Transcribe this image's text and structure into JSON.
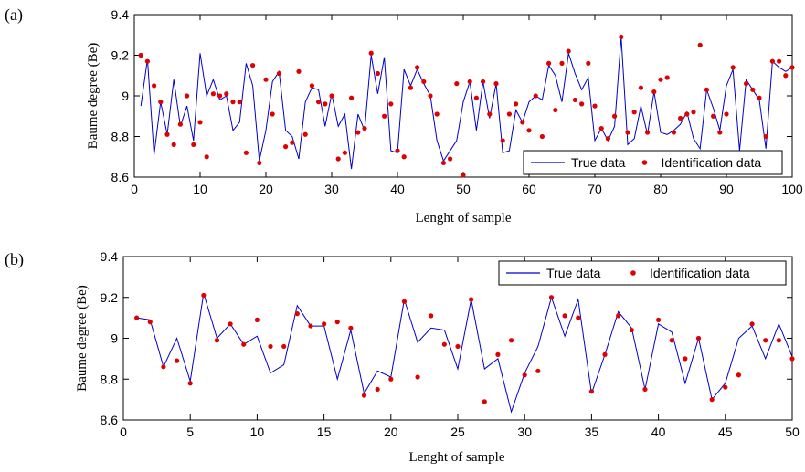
{
  "chart_data": [
    {
      "type": "line+scatter",
      "panel_label": "(a)",
      "xlabel": "Lenght of sample",
      "ylabel": "Baume degree (Be)",
      "xlim": [
        0,
        100
      ],
      "ylim": [
        8.6,
        9.4
      ],
      "xticks": [
        0,
        10,
        20,
        30,
        40,
        50,
        60,
        70,
        80,
        90,
        100
      ],
      "yticks": [
        8.6,
        8.8,
        9,
        9.2,
        9.4
      ],
      "ytick_labels": [
        "8.6",
        "8.8",
        "9",
        "9.2",
        "9.4"
      ],
      "legend": {
        "position": "bottom-right",
        "entries": [
          "True data",
          "Identification data"
        ]
      },
      "colors": {
        "true": "#0000cc",
        "ident": "#e00000"
      },
      "x": [
        1,
        2,
        3,
        4,
        5,
        6,
        7,
        8,
        9,
        10,
        11,
        12,
        13,
        14,
        15,
        16,
        17,
        18,
        19,
        20,
        21,
        22,
        23,
        24,
        25,
        26,
        27,
        28,
        29,
        30,
        31,
        32,
        33,
        34,
        35,
        36,
        37,
        38,
        39,
        40,
        41,
        42,
        43,
        44,
        45,
        46,
        47,
        48,
        49,
        50,
        51,
        52,
        53,
        54,
        55,
        56,
        57,
        58,
        59,
        60,
        61,
        62,
        63,
        64,
        65,
        66,
        67,
        68,
        69,
        70,
        71,
        72,
        73,
        74,
        75,
        76,
        77,
        78,
        79,
        80,
        81,
        82,
        83,
        84,
        85,
        86,
        87,
        88,
        89,
        90,
        91,
        92,
        93,
        94,
        95,
        96,
        97,
        98,
        99,
        100
      ],
      "series": [
        {
          "name": "True data",
          "style": "line",
          "values": [
            8.95,
            9.18,
            8.71,
            8.97,
            8.81,
            9.08,
            8.85,
            8.95,
            8.78,
            9.21,
            9.0,
            9.08,
            8.98,
            9.0,
            8.83,
            8.87,
            9.16,
            9.05,
            8.68,
            8.83,
            9.07,
            9.12,
            8.83,
            8.8,
            8.69,
            8.97,
            9.04,
            9.03,
            8.85,
            9.01,
            8.85,
            8.91,
            8.64,
            8.91,
            8.83,
            9.2,
            9.01,
            9.19,
            8.73,
            8.72,
            9.13,
            9.05,
            9.13,
            9.06,
            9.0,
            8.78,
            8.68,
            8.73,
            8.78,
            8.97,
            9.07,
            8.83,
            9.07,
            8.89,
            9.06,
            8.72,
            8.73,
            8.93,
            8.87,
            8.97,
            9.0,
            8.98,
            9.15,
            9.1,
            8.97,
            9.21,
            9.11,
            9.03,
            9.09,
            8.78,
            8.84,
            8.78,
            8.85,
            9.29,
            8.76,
            8.79,
            8.95,
            8.81,
            9.02,
            8.82,
            8.81,
            8.83,
            8.86,
            8.92,
            8.79,
            8.74,
            9.03,
            8.94,
            8.83,
            9.05,
            9.13,
            8.73,
            9.08,
            9.03,
            8.98,
            8.74,
            9.17,
            9.14,
            9.12,
            9.14
          ]
        },
        {
          "name": "Identification data",
          "style": "scatter",
          "values": [
            9.2,
            9.17,
            9.05,
            8.97,
            8.81,
            8.76,
            8.86,
            9.0,
            8.76,
            8.87,
            8.7,
            9.01,
            9.0,
            9.01,
            8.97,
            8.97,
            8.72,
            9.15,
            8.67,
            9.08,
            8.91,
            9.11,
            8.75,
            8.77,
            9.12,
            8.81,
            9.05,
            8.97,
            8.96,
            9.0,
            8.69,
            8.72,
            8.99,
            8.82,
            8.84,
            9.21,
            9.11,
            8.9,
            8.96,
            8.73,
            8.7,
            9.04,
            9.14,
            9.07,
            9.0,
            8.91,
            8.67,
            8.69,
            9.06,
            8.61,
            9.07,
            8.99,
            9.07,
            8.91,
            9.06,
            8.78,
            8.91,
            8.96,
            8.87,
            8.83,
            9.0,
            8.8,
            9.16,
            8.93,
            9.16,
            9.22,
            8.98,
            8.96,
            9.16,
            8.95,
            8.84,
            8.79,
            8.9,
            9.29,
            8.82,
            8.92,
            9.04,
            8.82,
            9.02,
            9.08,
            9.09,
            8.82,
            8.89,
            8.91,
            8.92,
            9.25,
            9.03,
            8.9,
            8.82,
            8.91,
            9.14,
            8.7,
            9.06,
            9.03,
            8.99,
            8.8,
            9.17,
            9.17,
            9.1,
            9.14
          ]
        }
      ]
    },
    {
      "type": "line+scatter",
      "panel_label": "(b)",
      "xlabel": "Lenght of sample",
      "ylabel": "Baume degree (Be)",
      "xlim": [
        0,
        50
      ],
      "ylim": [
        8.6,
        9.4
      ],
      "xticks": [
        0,
        5,
        10,
        15,
        20,
        25,
        30,
        35,
        40,
        45,
        50
      ],
      "yticks": [
        8.6,
        8.8,
        9,
        9.2,
        9.4
      ],
      "ytick_labels": [
        "8.6",
        "8.8",
        "9",
        "9.2",
        "9.4"
      ],
      "legend": {
        "position": "top-right",
        "entries": [
          "True data",
          "Identification data"
        ]
      },
      "colors": {
        "true": "#0000cc",
        "ident": "#e00000"
      },
      "x": [
        1,
        2,
        3,
        4,
        5,
        6,
        7,
        8,
        9,
        10,
        11,
        12,
        13,
        14,
        15,
        16,
        17,
        18,
        19,
        20,
        21,
        22,
        23,
        24,
        25,
        26,
        27,
        28,
        29,
        30,
        31,
        32,
        33,
        34,
        35,
        36,
        37,
        38,
        39,
        40,
        41,
        42,
        43,
        44,
        45,
        46,
        47,
        48,
        49,
        50
      ],
      "series": [
        {
          "name": "True data",
          "style": "line",
          "values": [
            9.1,
            9.09,
            8.86,
            9.0,
            8.79,
            9.22,
            9.0,
            9.07,
            8.97,
            9.01,
            8.83,
            8.87,
            9.16,
            9.06,
            9.06,
            8.8,
            9.04,
            8.73,
            8.84,
            8.81,
            9.19,
            8.98,
            9.05,
            9.04,
            8.85,
            9.19,
            8.85,
            8.9,
            8.64,
            8.83,
            8.96,
            9.2,
            9.01,
            9.19,
            8.73,
            8.92,
            9.13,
            9.05,
            8.75,
            9.07,
            9.03,
            8.78,
            9.0,
            8.7,
            8.78,
            9.0,
            9.06,
            8.9,
            9.07,
            8.91
          ]
        },
        {
          "name": "Identification data",
          "style": "scatter",
          "values": [
            9.1,
            9.08,
            8.86,
            8.89,
            8.78,
            9.21,
            8.99,
            9.07,
            8.97,
            9.09,
            8.96,
            8.96,
            9.12,
            9.06,
            9.07,
            9.08,
            9.05,
            8.72,
            8.75,
            8.8,
            9.18,
            8.81,
            9.11,
            8.97,
            8.96,
            9.19,
            8.69,
            8.92,
            8.99,
            8.82,
            8.84,
            9.2,
            9.11,
            9.1,
            8.74,
            8.92,
            9.11,
            9.04,
            8.75,
            9.09,
            8.99,
            8.9,
            9.0,
            8.7,
            8.76,
            8.82,
            9.07,
            8.99,
            8.99,
            8.9
          ]
        }
      ]
    }
  ]
}
